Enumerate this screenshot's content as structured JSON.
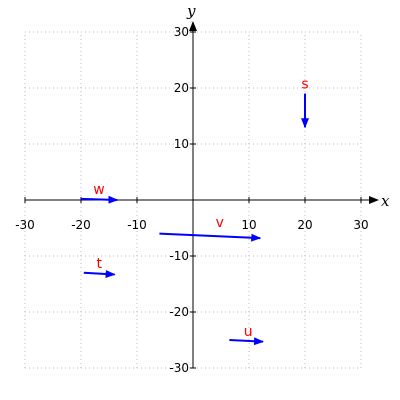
{
  "chart_data": {
    "type": "vector_plot",
    "xlabel": "x",
    "ylabel": "y",
    "xlim": [
      -30,
      30
    ],
    "ylim": [
      -30,
      30
    ],
    "x_ticks": [
      -30,
      -20,
      -10,
      10,
      20,
      30
    ],
    "y_ticks": [
      30,
      20,
      10,
      -10,
      -20,
      -30
    ],
    "x_tick_labels": [
      "-30",
      "-20",
      "-10",
      "10",
      "20",
      "30"
    ],
    "y_tick_labels": [
      "30",
      "20",
      "10",
      "-10",
      "-20",
      "-30"
    ],
    "grid": true,
    "grid_style": "dotted",
    "vector_color": "#0000ff",
    "label_color": "#ff0000",
    "vectors": [
      {
        "name": "s",
        "x0": 20,
        "y0": 19,
        "x1": 20,
        "y1": 13
      },
      {
        "name": "w",
        "x0": -20,
        "y0": 0.2,
        "x1": -13.5,
        "y1": 0
      },
      {
        "name": "v",
        "x0": -6,
        "y0": -6,
        "x1": 12,
        "y1": -6.8
      },
      {
        "name": "t",
        "x0": -19.5,
        "y0": -13,
        "x1": -14,
        "y1": -13.3
      },
      {
        "name": "u",
        "x0": 6.5,
        "y0": -25,
        "x1": 12.5,
        "y1": -25.3
      }
    ]
  }
}
